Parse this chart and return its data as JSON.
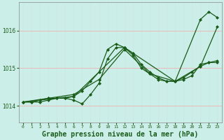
{
  "title": "Graphe pression niveau de la mer (hPa)",
  "background_color": "#cceee8",
  "grid_color_h": "#f0b0b0",
  "grid_color_v": "#c8e8e0",
  "line_color": "#1a5c1a",
  "marker": "D",
  "markersize": 2.0,
  "linewidth": 0.9,
  "xlim": [
    -0.5,
    23.5
  ],
  "ylim": [
    1013.55,
    1016.75
  ],
  "yticks": [
    1014,
    1015,
    1016
  ],
  "xticks": [
    0,
    1,
    2,
    3,
    4,
    5,
    6,
    7,
    8,
    9,
    10,
    11,
    12,
    13,
    14,
    15,
    16,
    17,
    18,
    19,
    20,
    21,
    22,
    23
  ],
  "title_fontsize": 7,
  "lines": [
    {
      "x": [
        0,
        1,
        2,
        3,
        4,
        5,
        6,
        7,
        8,
        9,
        10,
        11,
        12,
        13,
        14,
        15,
        16,
        17,
        18,
        19,
        20,
        21,
        22,
        23
      ],
      "y": [
        1014.1,
        1014.1,
        1014.1,
        1014.15,
        1014.2,
        1014.2,
        1014.15,
        1014.05,
        1014.3,
        1014.6,
        1015.25,
        1015.55,
        1015.55,
        1015.35,
        1015.0,
        1014.85,
        1014.7,
        1014.65,
        1014.65,
        1014.7,
        1014.8,
        1015.1,
        1015.15,
        1015.15
      ]
    },
    {
      "x": [
        0,
        1,
        2,
        3,
        4,
        5,
        6,
        7,
        8,
        9,
        10,
        11,
        12,
        13,
        14,
        15,
        16,
        17,
        18,
        19,
        20,
        21,
        22,
        23
      ],
      "y": [
        1014.1,
        1014.1,
        1014.15,
        1014.2,
        1014.2,
        1014.2,
        1014.25,
        1014.4,
        1014.65,
        1014.9,
        1015.5,
        1015.65,
        1015.55,
        1015.4,
        1015.1,
        1014.9,
        1014.75,
        1014.65,
        1014.65,
        1014.75,
        1014.9,
        1015.05,
        1015.15,
        1015.2
      ]
    },
    {
      "x": [
        0,
        6,
        12,
        18,
        21,
        22,
        23
      ],
      "y": [
        1014.1,
        1014.25,
        1015.55,
        1014.65,
        1016.3,
        1016.5,
        1016.35
      ]
    },
    {
      "x": [
        0,
        3,
        6,
        9,
        12,
        15,
        18,
        21,
        23
      ],
      "y": [
        1014.1,
        1014.2,
        1014.3,
        1014.7,
        1015.5,
        1014.85,
        1014.65,
        1015.05,
        1016.1
      ]
    }
  ]
}
